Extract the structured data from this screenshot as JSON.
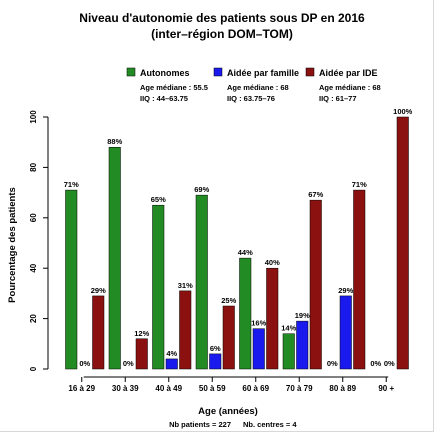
{
  "chart_data": {
    "type": "bar",
    "title": "Niveau d'autonomie des patients sous DP en 2016",
    "subtitle": "(inter–région DOM–TOM)",
    "xlabel": "Age (années)",
    "ylabel": "Pourcentage des patients",
    "ylim": [
      0,
      100
    ],
    "yticks": [
      0,
      20,
      40,
      60,
      80,
      100
    ],
    "grid": false,
    "legend_position": "top",
    "categories": [
      "16 à 29",
      "30 à 39",
      "40 à 49",
      "50 à 59",
      "60 à 69",
      "70 à 79",
      "80 à 89",
      "90 +"
    ],
    "series": [
      {
        "name": "Autonomes",
        "color": "#238b23",
        "values": [
          71,
          88,
          65,
          69,
          44,
          14,
          0,
          0
        ],
        "labels": [
          "71%",
          "88%",
          "65%",
          "69%",
          "44%",
          "14%",
          "0%",
          "0%"
        ],
        "stats": [
          "Age médiane : 55.5",
          "IIQ : 44–63.75"
        ]
      },
      {
        "name": "Aidée par famille",
        "color": "#1a1aee",
        "values": [
          0,
          0,
          4,
          6,
          16,
          19,
          29,
          0
        ],
        "labels": [
          "0%",
          "0%",
          "4%",
          "6%",
          "16%",
          "19%",
          "29%",
          "0%"
        ],
        "stats": [
          "Age médiane : 68",
          "IIQ : 63.75–76"
        ]
      },
      {
        "name": "Aidée par IDE",
        "color": "#8b1010",
        "values": [
          29,
          12,
          31,
          25,
          40,
          67,
          71,
          100
        ],
        "labels": [
          "29%",
          "12%",
          "31%",
          "25%",
          "40%",
          "67%",
          "71%",
          "100%"
        ],
        "stats": [
          "Age médiane : 68",
          "IIQ : 61–77"
        ]
      }
    ]
  },
  "footer": {
    "patients": "Nb patients = 227",
    "centres": "Nb. centres = 4"
  }
}
